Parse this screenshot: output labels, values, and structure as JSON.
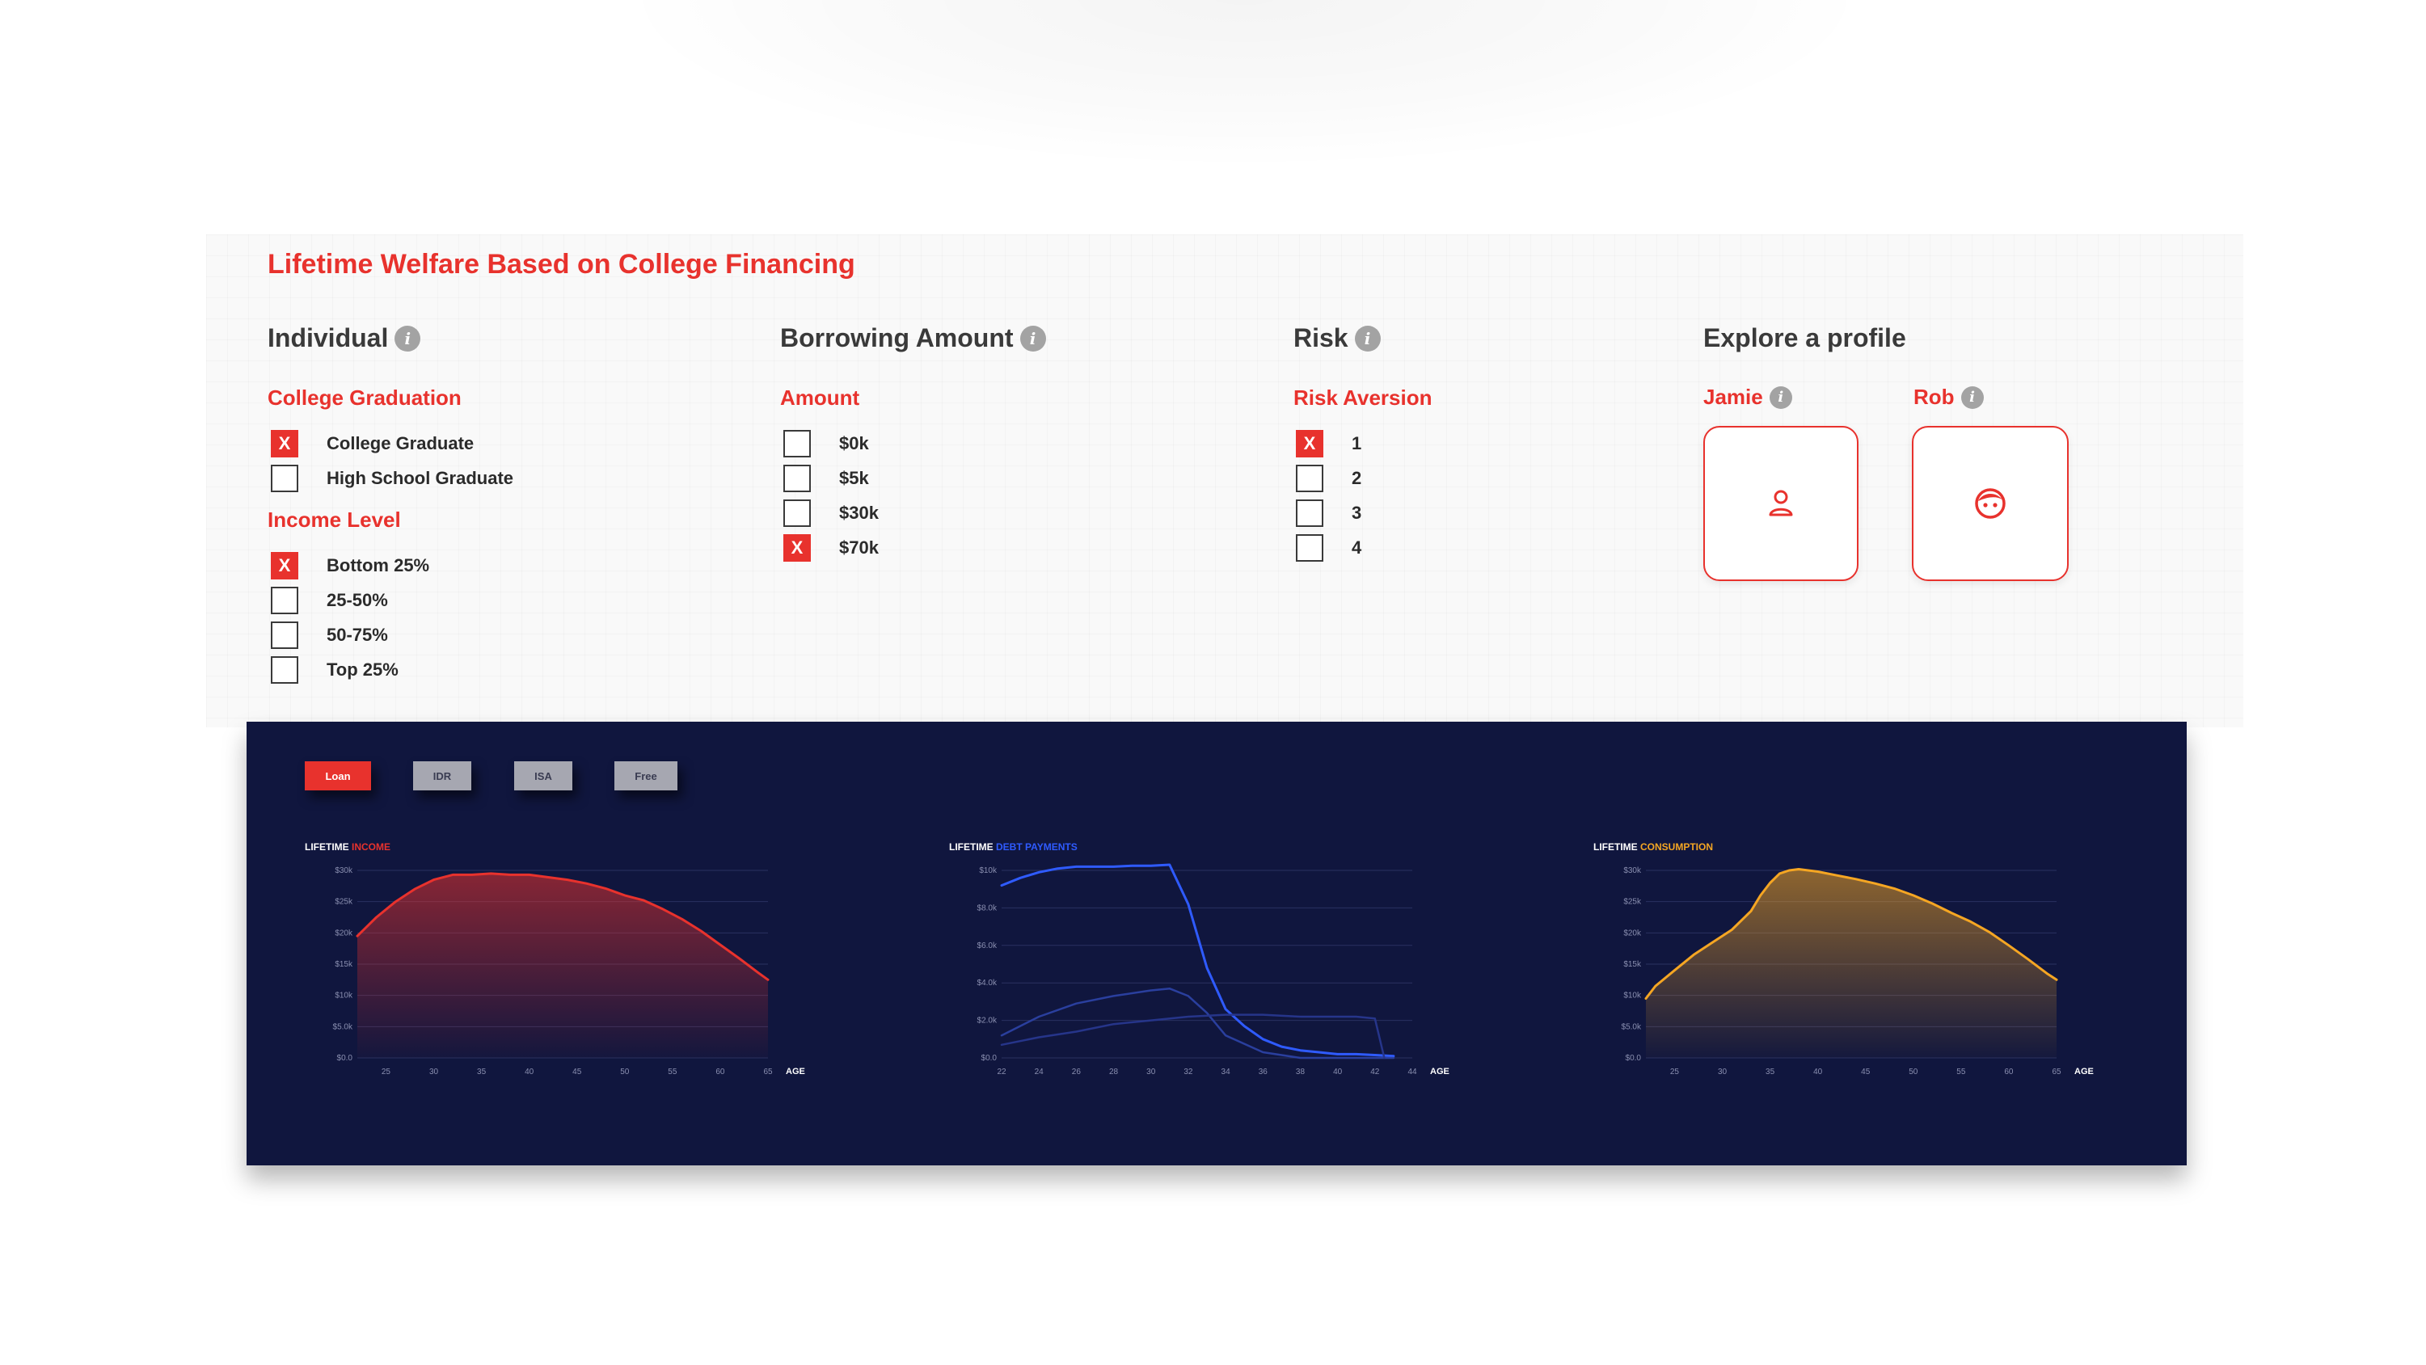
{
  "title": "Lifetime Welfare Based on College Financing",
  "info_glyph": "i",
  "sections": {
    "individual": {
      "heading": "Individual",
      "graduation": {
        "label": "College Graduation",
        "options": [
          {
            "label": "College Graduate",
            "checked": true
          },
          {
            "label": "High School Graduate",
            "checked": false
          }
        ]
      },
      "income": {
        "label": "Income Level",
        "options": [
          {
            "label": "Bottom 25%",
            "checked": true
          },
          {
            "label": "25-50%",
            "checked": false
          },
          {
            "label": "50-75%",
            "checked": false
          },
          {
            "label": "Top 25%",
            "checked": false
          }
        ]
      }
    },
    "borrowing": {
      "heading": "Borrowing Amount",
      "amount": {
        "label": "Amount",
        "options": [
          {
            "label": "$0k",
            "checked": false
          },
          {
            "label": "$5k",
            "checked": false
          },
          {
            "label": "$30k",
            "checked": false
          },
          {
            "label": "$70k",
            "checked": true
          }
        ]
      }
    },
    "risk": {
      "heading": "Risk",
      "aversion": {
        "label": "Risk Aversion",
        "options": [
          {
            "label": "1",
            "checked": true
          },
          {
            "label": "2",
            "checked": false
          },
          {
            "label": "3",
            "checked": false
          },
          {
            "label": "4",
            "checked": false
          }
        ]
      }
    },
    "profiles": {
      "heading": "Explore a profile",
      "items": [
        {
          "name": "Jamie",
          "icon": "person-icon"
        },
        {
          "name": "Rob",
          "icon": "face-icon"
        }
      ]
    }
  },
  "check_glyph": "X",
  "dashboard": {
    "tabs": [
      {
        "label": "Loan",
        "active": true
      },
      {
        "label": "IDR",
        "active": false
      },
      {
        "label": "ISA",
        "active": false
      },
      {
        "label": "Free",
        "active": false
      }
    ]
  },
  "colors": {
    "accent": "#e8322d",
    "navy": "#10163e",
    "income": "#e8322d",
    "debt": "#2f5bff",
    "consumption": "#f5a623"
  },
  "chart_data": [
    {
      "type": "area",
      "title_prefix": "LIFETIME",
      "title_highlight": "INCOME",
      "xlabel": "AGE",
      "x_ticks": [
        25,
        30,
        35,
        40,
        45,
        50,
        55,
        60,
        65
      ],
      "y_ticks": [
        "$0.0",
        "$5.0k",
        "$10k",
        "$15k",
        "$20k",
        "$25k",
        "$30k"
      ],
      "xlim": [
        22,
        65
      ],
      "ylim": [
        0,
        30000
      ],
      "series": [
        {
          "x": [
            22,
            24,
            26,
            28,
            30,
            32,
            34,
            36,
            38,
            40,
            42,
            44,
            46,
            48,
            50,
            52,
            54,
            56,
            58,
            60,
            62,
            64,
            65
          ],
          "values": [
            19500,
            22500,
            25000,
            27000,
            28500,
            29300,
            29300,
            29500,
            29300,
            29300,
            28900,
            28500,
            27900,
            27100,
            26000,
            25200,
            23800,
            22200,
            20300,
            18100,
            15900,
            13600,
            12500
          ]
        }
      ]
    },
    {
      "type": "line",
      "title_prefix": "LIFETIME",
      "title_highlight": "DEBT PAYMENTS",
      "xlabel": "AGE",
      "x_ticks": [
        22,
        24,
        26,
        28,
        30,
        32,
        34,
        36,
        38,
        40,
        42,
        44
      ],
      "y_ticks": [
        "$0.0",
        "$2.0k",
        "$4.0k",
        "$6.0k",
        "$8.0k",
        "$10k"
      ],
      "xlim": [
        22,
        44
      ],
      "ylim": [
        0,
        10000
      ],
      "series": [
        {
          "x": [
            22,
            23,
            24,
            25,
            26,
            27,
            28,
            29,
            30,
            31,
            32,
            33,
            34,
            35,
            36,
            37,
            38,
            39,
            40,
            41,
            42,
            43
          ],
          "values": [
            9200,
            9600,
            9900,
            10100,
            10200,
            10200,
            10200,
            10250,
            10250,
            10300,
            8200,
            4800,
            2600,
            1700,
            1000,
            600,
            400,
            300,
            200,
            200,
            150,
            100
          ]
        },
        {
          "x": [
            22,
            24,
            26,
            28,
            30,
            31,
            32,
            33,
            34,
            36,
            38,
            40,
            41,
            42,
            43
          ],
          "values": [
            1200,
            2200,
            2900,
            3300,
            3600,
            3700,
            3300,
            2400,
            1200,
            300,
            0,
            0,
            0,
            0,
            0
          ]
        },
        {
          "x": [
            22,
            24,
            26,
            28,
            30,
            32,
            34,
            36,
            38,
            40,
            41,
            42,
            42.5
          ],
          "values": [
            700,
            1100,
            1400,
            1800,
            2000,
            2200,
            2300,
            2300,
            2200,
            2200,
            2200,
            2100,
            0
          ]
        }
      ]
    },
    {
      "type": "area",
      "title_prefix": "LIFETIME",
      "title_highlight": "CONSUMPTION",
      "xlabel": "AGE",
      "x_ticks": [
        25,
        30,
        35,
        40,
        45,
        50,
        55,
        60,
        65
      ],
      "y_ticks": [
        "$0.0",
        "$5.0k",
        "$10k",
        "$15k",
        "$20k",
        "$25k",
        "$30k"
      ],
      "xlim": [
        22,
        65
      ],
      "ylim": [
        0,
        30000
      ],
      "series": [
        {
          "x": [
            22,
            23,
            25,
            27,
            29,
            31,
            33,
            34,
            35,
            36,
            37,
            38,
            40,
            42,
            44,
            46,
            48,
            50,
            52,
            54,
            56,
            58,
            60,
            62,
            64,
            65
          ],
          "values": [
            9500,
            11500,
            14000,
            16500,
            18500,
            20500,
            23500,
            26000,
            28000,
            29500,
            30000,
            30200,
            29800,
            29200,
            28600,
            27900,
            27100,
            26000,
            24700,
            23200,
            21800,
            20100,
            18000,
            15800,
            13500,
            12500
          ]
        }
      ]
    }
  ]
}
